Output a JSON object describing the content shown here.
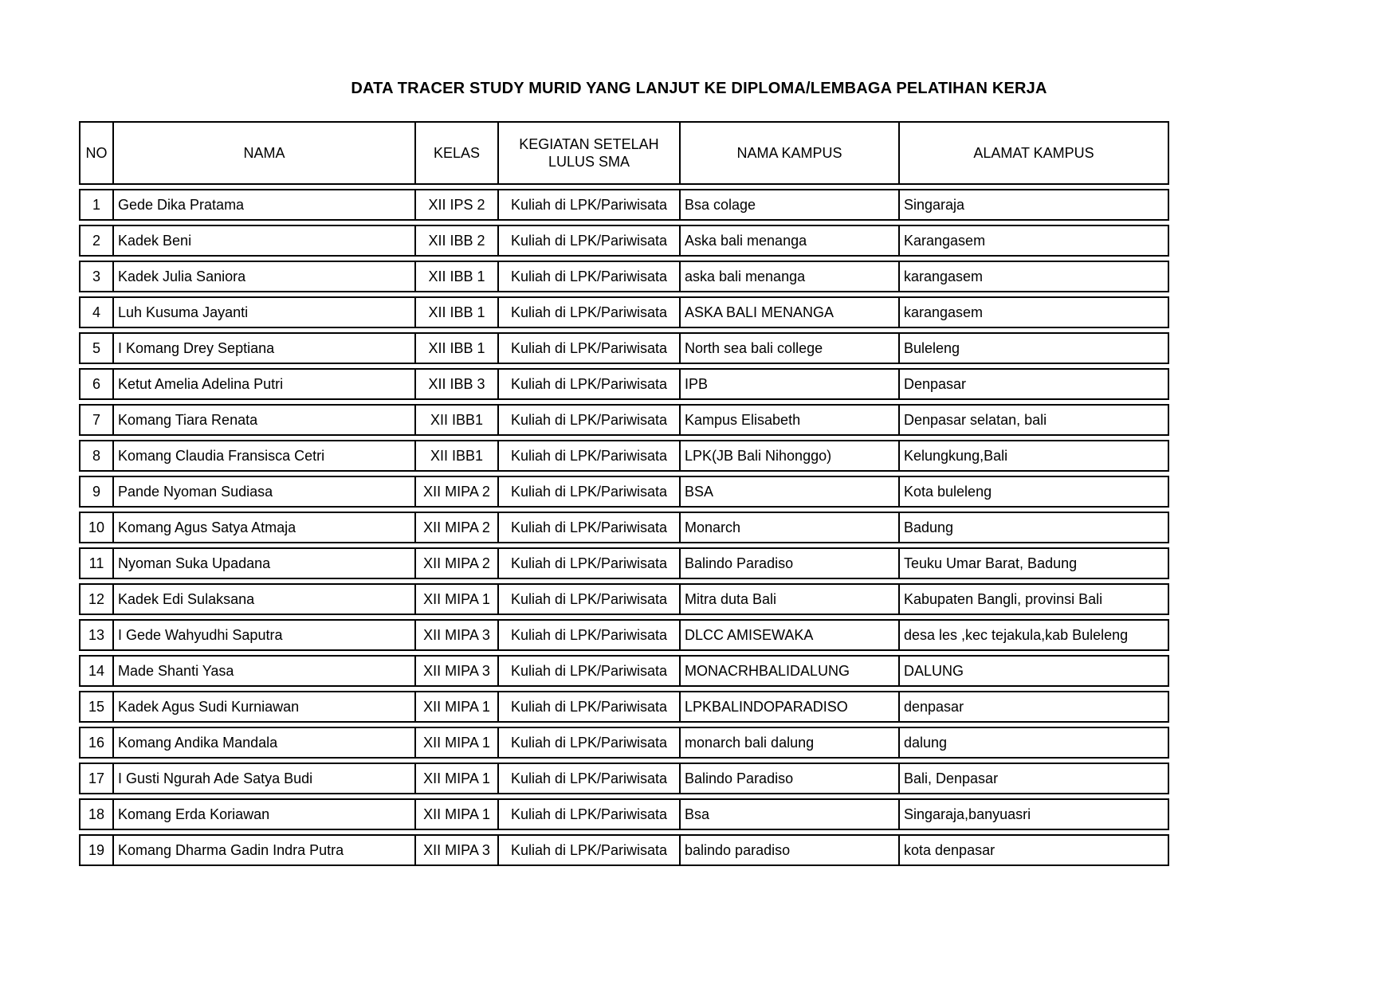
{
  "page": {
    "title": "DATA TRACER STUDY MURID YANG LANJUT KE DIPLOMA/LEMBAGA PELATIHAN KERJA"
  },
  "colors": {
    "text": "#000000",
    "border": "#000000",
    "background": "#ffffff"
  },
  "table": {
    "columns": [
      "NO",
      "NAMA",
      "KELAS",
      "KEGIATAN SETELAH LULUS SMA",
      "NAMA KAMPUS",
      "ALAMAT KAMPUS"
    ],
    "rows": [
      [
        "1",
        "Gede Dika Pratama",
        "XII IPS 2",
        "Kuliah di LPK/Pariwisata",
        "Bsa colage",
        "Singaraja"
      ],
      [
        "2",
        "Kadek Beni",
        "XII IBB 2",
        "Kuliah di LPK/Pariwisata",
        "Aska bali menanga",
        "Karangasem"
      ],
      [
        "3",
        "Kadek Julia Saniora",
        "XII IBB 1",
        "Kuliah di LPK/Pariwisata",
        "aska bali menanga",
        "karangasem"
      ],
      [
        "4",
        "Luh Kusuma Jayanti",
        "XII IBB 1",
        "Kuliah di LPK/Pariwisata",
        "ASKA BALI MENANGA",
        "karangasem"
      ],
      [
        "5",
        "I Komang Drey Septiana",
        "XII IBB 1",
        "Kuliah di LPK/Pariwisata",
        "North sea bali college",
        "Buleleng"
      ],
      [
        "6",
        "Ketut Amelia Adelina Putri",
        "XII IBB 3",
        "Kuliah di LPK/Pariwisata",
        "IPB",
        "Denpasar"
      ],
      [
        "7",
        "Komang Tiara Renata",
        "XII IBB1",
        "Kuliah di LPK/Pariwisata",
        "Kampus Elisabeth",
        "Denpasar selatan, bali"
      ],
      [
        "8",
        "Komang Claudia Fransisca Cetri",
        "XII IBB1",
        "Kuliah di LPK/Pariwisata",
        "LPK(JB Bali Nihonggo)",
        "Kelungkung,Bali"
      ],
      [
        "9",
        "Pande Nyoman Sudiasa",
        "XII MIPA 2",
        "Kuliah di LPK/Pariwisata",
        "BSA",
        "Kota buleleng"
      ],
      [
        "10",
        "Komang Agus Satya Atmaja",
        "XII MIPA 2",
        "Kuliah di LPK/Pariwisata",
        "Monarch",
        "Badung"
      ],
      [
        "11",
        "Nyoman Suka Upadana",
        "XII MIPA 2",
        "Kuliah di LPK/Pariwisata",
        "Balindo Paradiso",
        "Teuku Umar Barat, Badung"
      ],
      [
        "12",
        "Kadek Edi Sulaksana",
        "XII MIPA 1",
        "Kuliah di LPK/Pariwisata",
        "Mitra duta Bali",
        "Kabupaten Bangli, provinsi Bali"
      ],
      [
        "13",
        "I Gede Wahyudhi Saputra",
        "XII MIPA 3",
        "Kuliah di LPK/Pariwisata",
        "DLCC AMISEWAKA",
        "desa les ,kec tejakula,kab Buleleng"
      ],
      [
        "14",
        "Made Shanti Yasa",
        "XII MIPA 3",
        "Kuliah di LPK/Pariwisata",
        "MONACRHBALIDALUNG",
        "DALUNG"
      ],
      [
        "15",
        "Kadek Agus Sudi Kurniawan",
        "XII MIPA 1",
        "Kuliah di LPK/Pariwisata",
        "LPKBALINDOPARADISO",
        "denpasar"
      ],
      [
        "16",
        "Komang Andika Mandala",
        "XII MIPA 1",
        "Kuliah di LPK/Pariwisata",
        "monarch bali dalung",
        "dalung"
      ],
      [
        "17",
        "I Gusti Ngurah Ade Satya Budi",
        "XII MIPA 1",
        "Kuliah di LPK/Pariwisata",
        "Balindo Paradiso",
        "Bali, Denpasar"
      ],
      [
        "18",
        "Komang Erda Koriawan",
        "XII MIPA 1",
        "Kuliah di LPK/Pariwisata",
        "Bsa",
        "Singaraja,banyuasri"
      ],
      [
        "19",
        "Komang Dharma Gadin Indra Putra",
        "XII MIPA 3",
        "Kuliah di LPK/Pariwisata",
        "balindo paradiso",
        "kota denpasar"
      ]
    ]
  }
}
